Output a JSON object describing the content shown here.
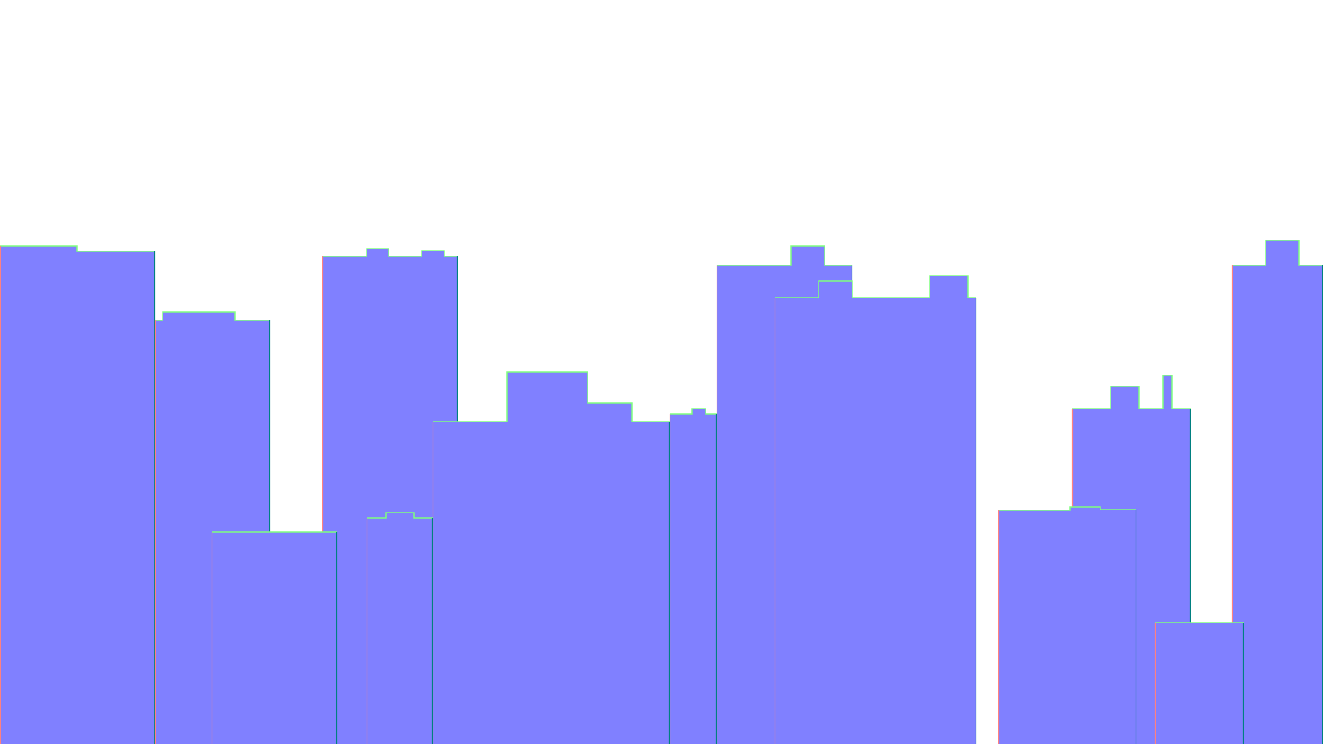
{
  "colors": {
    "background": "#ffffff",
    "building_fill": "#8080ff",
    "roof_edge_light": "#7fff7f",
    "edge_left": "#ff8080",
    "edge_right": "#008080"
  }
}
